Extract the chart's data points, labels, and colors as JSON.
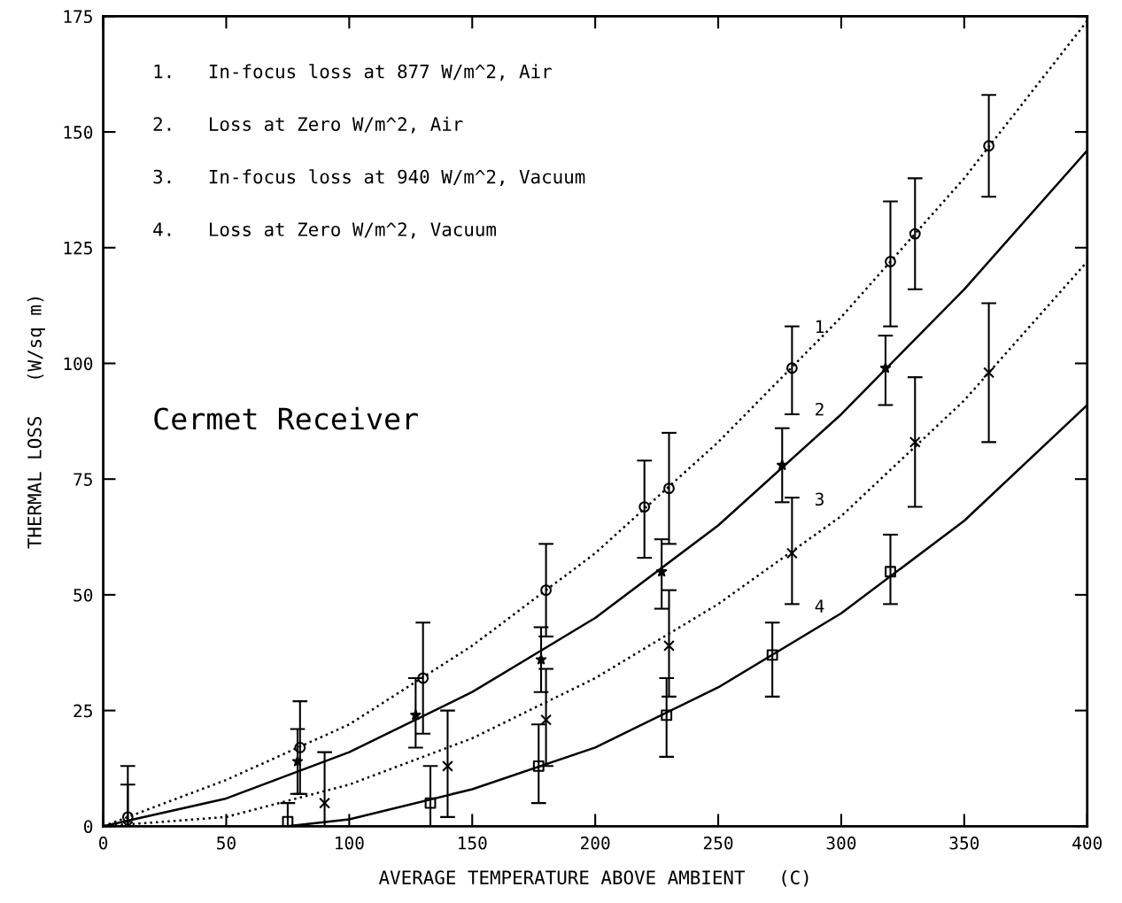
{
  "chart_data": {
    "type": "scatter",
    "xlabel": "AVERAGE TEMPERATURE ABOVE AMBIENT   (C)",
    "ylabel": "THERMAL LOSS   (W/sq m)",
    "xlim": [
      0,
      400
    ],
    "xticks": [
      0,
      50,
      100,
      150,
      200,
      250,
      300,
      350,
      400
    ],
    "ylim": [
      0,
      175
    ],
    "yticks": [
      0,
      25,
      50,
      75,
      100,
      125,
      150,
      175
    ],
    "grid": false,
    "annotations": [
      "1.   In-focus loss at 877 W/m^2, Air",
      "2.   Loss at Zero W/m^2, Air",
      "3.   In-focus loss at 940 W/m^2, Vacuum",
      "4.   Loss at Zero W/m^2, Vacuum",
      "Cermet Receiver",
      "1",
      "2",
      "3",
      "4"
    ],
    "series": [
      {
        "type": "line",
        "line_style": "dotted",
        "color": "#000000",
        "x": [
          0,
          50,
          100,
          150,
          200,
          250,
          300,
          350,
          400
        ],
        "values": [
          0,
          10,
          22,
          39,
          59,
          83,
          110,
          140,
          174
        ]
      },
      {
        "type": "line",
        "line_style": "solid",
        "color": "#000000",
        "x": [
          0,
          50,
          100,
          150,
          200,
          250,
          300,
          350,
          400
        ],
        "values": [
          0,
          6,
          16,
          29,
          45,
          65,
          89,
          116,
          146
        ]
      },
      {
        "type": "line",
        "line_style": "dotted",
        "color": "#000000",
        "x": [
          0,
          50,
          100,
          150,
          200,
          250,
          300,
          350,
          400
        ],
        "values": [
          0,
          2,
          9,
          19,
          32,
          48,
          67,
          92,
          122
        ]
      },
      {
        "type": "line",
        "line_style": "solid",
        "color": "#000000",
        "x": [
          75,
          100,
          150,
          200,
          250,
          300,
          350,
          400
        ],
        "values": [
          0,
          1.5,
          8,
          17,
          30,
          46,
          66,
          91
        ]
      },
      {
        "marker": "circle",
        "color": "#000000",
        "x": [
          10,
          80,
          130,
          180,
          220,
          230,
          280,
          320,
          330,
          360
        ],
        "values": [
          2,
          17,
          32,
          51,
          69,
          73,
          99,
          122,
          128,
          147
        ],
        "errors": [
          [
            0,
            13
          ],
          [
            7,
            27
          ],
          [
            20,
            44
          ],
          [
            41,
            61
          ],
          [
            58,
            79
          ],
          [
            61,
            85
          ],
          [
            89,
            108
          ],
          [
            108,
            135
          ],
          [
            116,
            140
          ],
          [
            136,
            158
          ]
        ]
      },
      {
        "marker": "star",
        "color": "#000000",
        "x": [
          79,
          127,
          178,
          227,
          276,
          318
        ],
        "values": [
          14,
          24,
          36,
          55,
          78,
          99
        ],
        "errors": [
          [
            7,
            21
          ],
          [
            17,
            32
          ],
          [
            29,
            43
          ],
          [
            47,
            62
          ],
          [
            70,
            86
          ],
          [
            91,
            106
          ]
        ]
      },
      {
        "marker": "cross",
        "color": "#000000",
        "x": [
          10,
          90,
          140,
          180,
          230,
          280,
          330,
          360
        ],
        "values": [
          0,
          5,
          13,
          23,
          39,
          59,
          83,
          98
        ],
        "errors": [
          [
            0,
            9
          ],
          [
            0,
            16
          ],
          [
            2,
            25
          ],
          [
            13,
            34
          ],
          [
            28,
            51
          ],
          [
            48,
            71
          ],
          [
            69,
            97
          ],
          [
            83,
            113
          ]
        ]
      },
      {
        "marker": "square",
        "color": "#000000",
        "x": [
          75,
          133,
          177,
          229,
          272,
          320
        ],
        "values": [
          1,
          5,
          13,
          24,
          37,
          55
        ],
        "errors": [
          [
            0,
            5
          ],
          [
            0,
            13
          ],
          [
            5,
            22
          ],
          [
            15,
            32
          ],
          [
            28,
            44
          ],
          [
            48,
            63
          ]
        ]
      }
    ]
  }
}
